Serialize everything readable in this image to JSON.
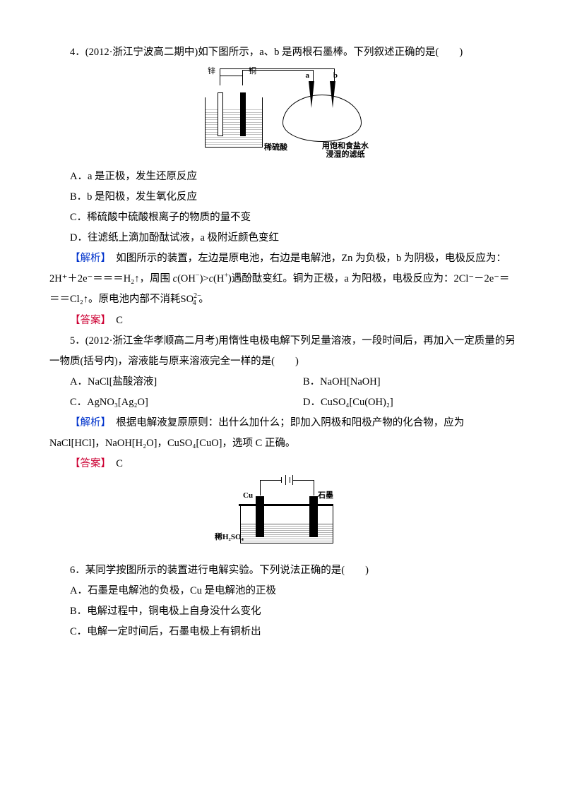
{
  "q4": {
    "intro": "4．(2012·浙江宁波高二期中)如下图所示，a、b 是两根石墨棒。下列叙述正确的是(　　)",
    "optA": "A．a 是正极，发生还原反应",
    "optB": "B．b 是阳极，发生氧化反应",
    "optC": "C．稀硫酸中硫酸根离子的物质的量不变",
    "optD": "D．往滤纸上滴加酚酞试液，a 极附近颜色变红",
    "analysis_label": "【解析】",
    "analysis1": "　如图所示的装置，左边是原电池，右边是电解池，Zn 为负极，b 为阴极，电极反应为：2H⁺＋2e⁻＝＝＝H₂↑，周围 ",
    "coh": "c(OH⁻)>c(H⁺)",
    "analysis1b": "遇酚酞变红。铜为正极，a 为阳极，电极反应为：2Cl⁻－2e⁻＝＝＝Cl₂↑。原电池内部不消耗SO",
    "so4": "2−4",
    "analysis1c": "。",
    "answer_label": "【答案】",
    "answer": "　C",
    "diagram": {
      "zn": "锌",
      "cu": "铜",
      "a": "a",
      "b": "b",
      "xishusuan": "稀硫酸",
      "paper": "用饱和食盐水\n浸湿的滤纸"
    }
  },
  "q5": {
    "intro": "5．(2012·浙江金华孝顺高二月考)用惰性电极电解下列足量溶液，一段时间后，再加入一定质量的另一物质(括号内)，溶液能与原来溶液完全一样的是(　　)",
    "optA": "A．NaCl[盐酸溶液]",
    "optB": "B．NaOH[NaOH]",
    "optC": "C．AgNO₃[Ag₂O]",
    "optD": "D．CuSO₄[Cu(OH)₂]",
    "analysis_label": "【解析】",
    "analysis": "　根据电解液复原原则：出什么加什么；即加入阴极和阳极产物的化合物，应为 NaCl[HCl]，NaOH[H₂O]，CuSO₄[CuO]，选项 C 正确。",
    "answer_label": "【答案】",
    "answer": "　C"
  },
  "q6": {
    "intro": "6．某同学按图所示的装置进行电解实验。下列说法正确的是(　　)",
    "optA": "A．石墨是电解池的负极，Cu 是电解池的正极",
    "optB": "B．电解过程中，铜电极上自身没什么变化",
    "optC": "C．电解一定时间后，石墨电极上有铜析出",
    "diagram": {
      "cu": "Cu",
      "graphite": "石墨",
      "label": "稀H₂SO₄"
    }
  },
  "colors": {
    "blue": "#0033cc",
    "red": "#cc0033",
    "text": "#000000",
    "bg": "#ffffff"
  }
}
